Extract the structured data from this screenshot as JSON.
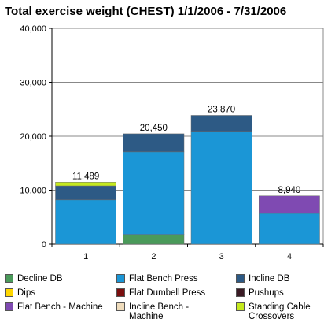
{
  "chart_data": {
    "type": "bar",
    "stacked": true,
    "title": "Total exercise weight (CHEST) 1/1/2006 - 7/31/2006",
    "xlabel": "",
    "ylabel": "",
    "ylim": [
      0,
      40000
    ],
    "yticks": [
      "0",
      "10,000",
      "20,000",
      "30,000",
      "40,000"
    ],
    "categories": [
      "1",
      "2",
      "3",
      "4"
    ],
    "totals_labels": [
      "11,489",
      "20,450",
      "23,870",
      "8,940"
    ],
    "series": [
      {
        "name": "Decline DB",
        "color": "#4a9a5a",
        "values": [
          0,
          1800,
          0,
          0
        ]
      },
      {
        "name": "Flat Bench Press",
        "color": "#1b96d6",
        "values": [
          8200,
          15300,
          20900,
          5700
        ]
      },
      {
        "name": "Incline DB",
        "color": "#2d5a85",
        "values": [
          2600,
          3350,
          2970,
          0
        ]
      },
      {
        "name": "Dips",
        "color": "#ffd700",
        "values": [
          0,
          0,
          0,
          0
        ]
      },
      {
        "name": "Flat Dumbell Press",
        "color": "#7a0e0e",
        "values": [
          0,
          0,
          0,
          0
        ]
      },
      {
        "name": "Pushups",
        "color": "#3a1a24",
        "values": [
          0,
          0,
          0,
          0
        ]
      },
      {
        "name": "Flat Bench - Machine",
        "color": "#7f4ab2",
        "values": [
          0,
          0,
          0,
          3240
        ]
      },
      {
        "name": "Incline Bench - Machine",
        "color": "#efdcbc",
        "values": [
          0,
          0,
          0,
          0
        ]
      },
      {
        "name": "Standing Cable Crossovers",
        "color": "#c5ea1e",
        "values": [
          689,
          0,
          0,
          0
        ]
      }
    ],
    "grid": true,
    "legend_position": "bottom"
  }
}
